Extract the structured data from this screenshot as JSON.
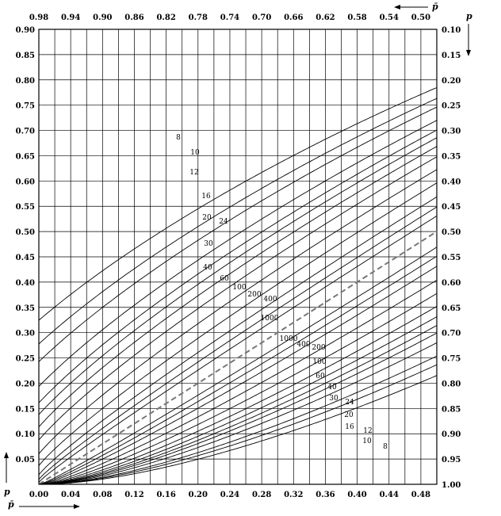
{
  "chart_data": {
    "type": "line",
    "description_axes": {
      "left": {
        "label": "p",
        "lim": [
          0,
          0.9
        ],
        "ticks": [
          "0.05",
          "0.10",
          "0.15",
          "0.20",
          "0.25",
          "0.30",
          "0.35",
          "0.40",
          "0.45",
          "0.50",
          "0.55",
          "0.60",
          "0.65",
          "0.70",
          "0.75",
          "0.80",
          "0.85",
          "0.90"
        ]
      },
      "bottom": {
        "label": "p̄",
        "lim": [
          0,
          0.5
        ],
        "ticks": [
          "0.00",
          "0.04",
          "0.08",
          "0.12",
          "0.16",
          "0.20",
          "0.24",
          "0.28",
          "0.32",
          "0.36",
          "0.40",
          "0.44",
          "0.48"
        ]
      },
      "top": {
        "label": "p̄",
        "lim": [
          1.0,
          0.5
        ],
        "ticks": [
          "0.98",
          "0.94",
          "0.90",
          "0.86",
          "0.82",
          "0.78",
          "0.74",
          "0.70",
          "0.66",
          "0.62",
          "0.58",
          "0.54",
          "0.50"
        ]
      },
      "right": {
        "label": "p",
        "lim": [
          1.0,
          0.1
        ],
        "ticks": [
          "0.10",
          "0.15",
          "0.20",
          "0.25",
          "0.30",
          "0.35",
          "0.40",
          "0.45",
          "0.50",
          "0.55",
          "0.60",
          "0.65",
          "0.70",
          "0.75",
          "0.80",
          "0.85",
          "0.90",
          "0.95",
          "1.00"
        ]
      }
    },
    "grid": true,
    "diagonal": {
      "style": "dashed",
      "points": [
        [
          0,
          0
        ],
        [
          0.5,
          0.5
        ]
      ]
    },
    "upper_curve_labels": [
      "8",
      "10",
      "12",
      "16",
      "20",
      "24",
      "30",
      "40",
      "60",
      "100",
      "200",
      "400",
      "1000"
    ],
    "lower_curve_labels": [
      "1000",
      "400",
      "200",
      "100",
      "60",
      "40",
      "30",
      "24",
      "20",
      "16",
      "12",
      "10",
      "8"
    ],
    "sample_sizes": [
      8,
      10,
      12,
      16,
      20,
      24,
      30,
      40,
      60,
      100,
      200,
      400,
      1000
    ]
  }
}
